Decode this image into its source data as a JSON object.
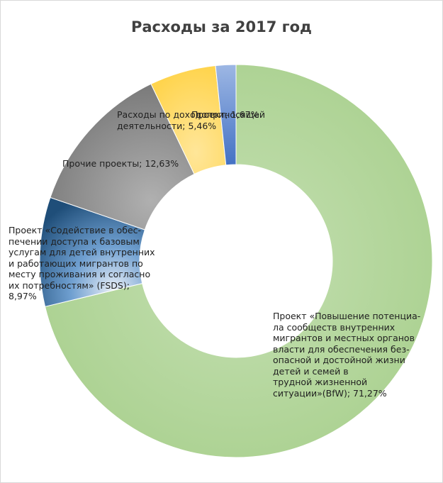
{
  "chart_data": {
    "type": "pie",
    "title": "Расходы за 2017 год",
    "series": [
      {
        "label": "Проект «Повышение потенциа-\nла сообществ внутренних\nмигрантов и местных органов\nвласти для обеспечения без-\nопасной и достойной жизни\nдетей и семей                                в\nтрудной жизненной\nситуации»(BfW); 71,27%",
        "value": 71.27,
        "color": "#a9d08e"
      },
      {
        "label": " Проект «Содействие в обес-\nпечении доступа к базовым\nуслугам для детей внутренних\nи работающих мигрантов  по\nместу проживания и согласно\nих потребностям» (FSDS);\n8,97%",
        "value": 8.97,
        "color": "#2e75b6"
      },
      {
        "label": "Прочие  проекты; 12,63%",
        "value": 12.63,
        "color": "#8c8c8c"
      },
      {
        "label": "Расходы по доходоприносящей\nдеятельности; 5,46%",
        "value": 5.46,
        "color": "#ffd966"
      },
      {
        "label": "Проект; 1,67%",
        "value": 1.67,
        "color": "#8eaadb"
      }
    ]
  }
}
